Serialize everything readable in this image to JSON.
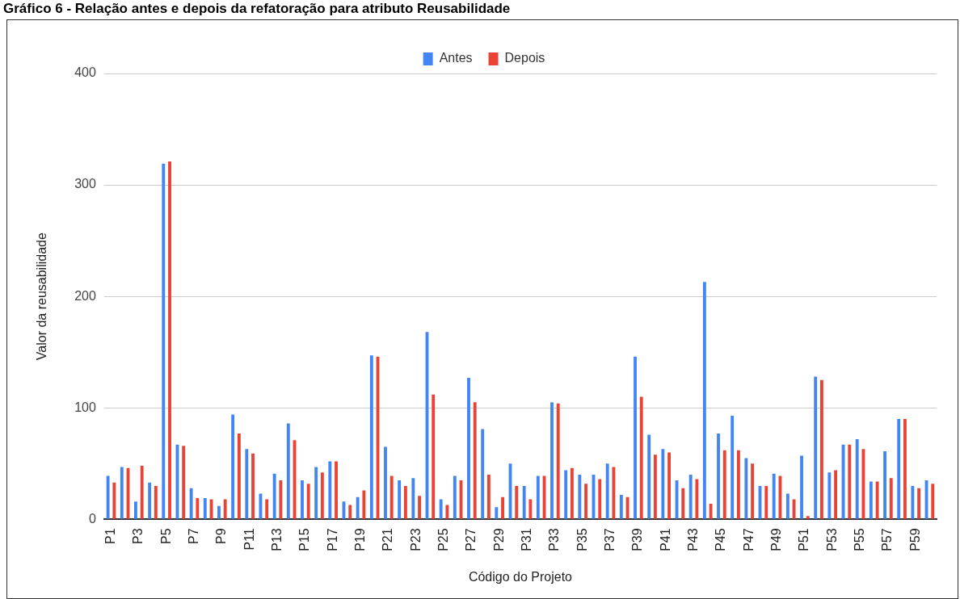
{
  "chart_data": {
    "type": "bar",
    "title": "Gráfico 6 - Relação antes e depois da refatoração para atributo Reusabilidade",
    "xlabel": "Código do Projeto",
    "ylabel": "Valor da reusabilidade",
    "categories": [
      "P1",
      null,
      "P3",
      null,
      "P5",
      null,
      "P7",
      null,
      "P9",
      null,
      "P11",
      null,
      "P13",
      null,
      "P15",
      null,
      "P17",
      null,
      "P19",
      null,
      "P21",
      null,
      "P23",
      null,
      "P25",
      null,
      "P27",
      null,
      "P29",
      null,
      "P31",
      null,
      "P33",
      null,
      "P35",
      null,
      "P37",
      null,
      "P39",
      null,
      "P41",
      null,
      "P43",
      null,
      "P45",
      null,
      "P47",
      null,
      "P49",
      null,
      "P51",
      null,
      "P53",
      null,
      "P55",
      null,
      "P57",
      null,
      "P59",
      null
    ],
    "series": [
      {
        "name": "Antes",
        "color": "#4285f4",
        "values": [
          39,
          47,
          16,
          33,
          319,
          67,
          28,
          19,
          12,
          94,
          63,
          23,
          41,
          86,
          35,
          47,
          52,
          16,
          20,
          147,
          65,
          35,
          37,
          168,
          18,
          39,
          127,
          81,
          11,
          50,
          30,
          39,
          105,
          44,
          40,
          40,
          50,
          22,
          146,
          76,
          63,
          35,
          40,
          213,
          77,
          93,
          55,
          30,
          41,
          23,
          57,
          128,
          42,
          67,
          72,
          34,
          61,
          90,
          30,
          35
        ]
      },
      {
        "name": "Depois",
        "color": "#ea4335",
        "values": [
          33,
          46,
          48,
          30,
          321,
          66,
          19,
          18,
          18,
          77,
          59,
          18,
          35,
          71,
          32,
          42,
          52,
          13,
          26,
          146,
          39,
          30,
          21,
          112,
          13,
          35,
          105,
          40,
          20,
          30,
          18,
          39,
          104,
          46,
          32,
          36,
          47,
          20,
          110,
          58,
          60,
          28,
          36,
          14,
          62,
          62,
          50,
          30,
          39,
          18,
          3,
          125,
          44,
          67,
          63,
          34,
          37,
          90,
          28,
          32
        ]
      }
    ],
    "ylim": [
      0,
      400
    ],
    "yticks": [
      0,
      100,
      200,
      300,
      400
    ],
    "grid": "y",
    "legend": "top"
  }
}
